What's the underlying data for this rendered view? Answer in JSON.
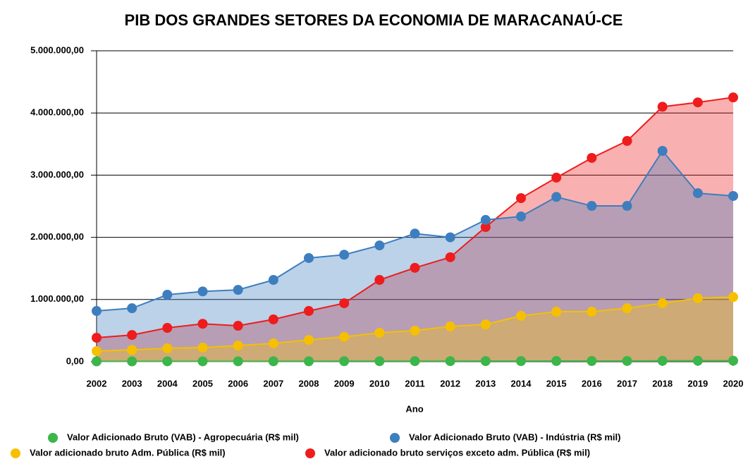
{
  "chart_data": {
    "type": "area",
    "title": "PIB DOS GRANDES SETORES DA ECONOMIA DE MARACANAÚ-CE",
    "x_label": "Ano",
    "categories": [
      "2002",
      "2003",
      "2004",
      "2005",
      "2006",
      "2007",
      "2008",
      "2009",
      "2010",
      "2011",
      "2012",
      "2013",
      "2014",
      "2015",
      "2016",
      "2017",
      "2018",
      "2019",
      "2020"
    ],
    "series": [
      {
        "name": "Valor Adicionado Bruto (VAB) - Agropecuária (R$ mil)",
        "color": "#3cb54a",
        "values": [
          5000,
          5000,
          6000,
          6000,
          6000,
          7000,
          7000,
          8000,
          8000,
          9000,
          9000,
          10000,
          10000,
          11000,
          11000,
          12000,
          14000,
          15000,
          16000
        ]
      },
      {
        "name": "Valor Adicionado Bruto (VAB) - Indústria (R$ mil)",
        "color": "#3d7ebf",
        "values": [
          816000,
          860000,
          1077000,
          1130000,
          1155000,
          1315000,
          1667000,
          1720000,
          1870000,
          2060000,
          2000000,
          2280000,
          2335000,
          2650000,
          2505000,
          2505000,
          3390000,
          2710000,
          2665000
        ]
      },
      {
        "name": "Valor adicionado bruto Adm. Pública (R$ mil)",
        "color": "#f6c000",
        "values": [
          170000,
          190000,
          215000,
          227000,
          260000,
          295000,
          350000,
          400000,
          465000,
          500000,
          567000,
          600000,
          737000,
          805000,
          805000,
          860000,
          940000,
          1020000,
          1040000
        ]
      },
      {
        "name": "Valor adicionado bruto serviços exceto adm. Pública (R$ mil)",
        "color": "#ee1c1c",
        "values": [
          385000,
          430000,
          544000,
          610000,
          578000,
          680000,
          816000,
          940000,
          1315000,
          1510000,
          1680000,
          2165000,
          2630000,
          2960000,
          3277000,
          3550000,
          4100000,
          4170000,
          4250000
        ]
      }
    ],
    "ylim": [
      0,
      5000000
    ],
    "yticks": [
      {
        "value": 0,
        "label": "0,00"
      },
      {
        "value": 1000000,
        "label": "1.000.000,00"
      },
      {
        "value": 2000000,
        "label": "2.000.000,00"
      },
      {
        "value": 3000000,
        "label": "3.000.000,00"
      },
      {
        "value": 4000000,
        "label": "4.000.000,00"
      },
      {
        "value": 5000000,
        "label": "5.000.000,00"
      }
    ],
    "grid": true
  }
}
